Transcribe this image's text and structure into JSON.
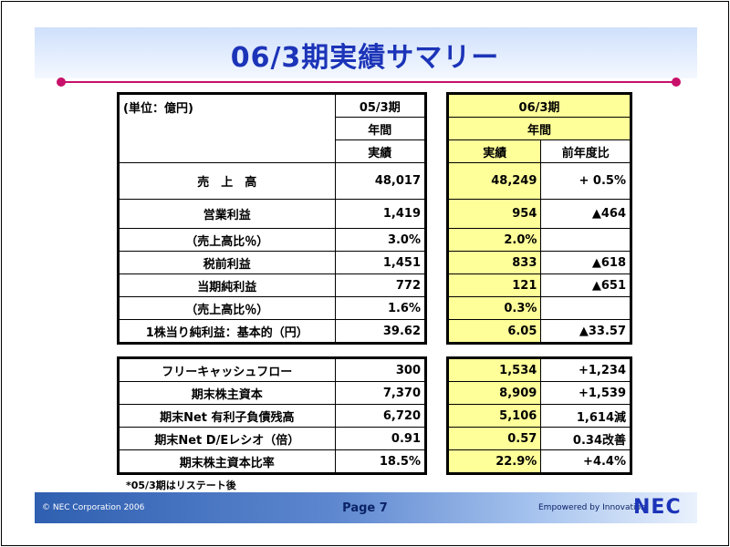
{
  "title": "06/3期実績サマリー",
  "footer": {
    "copyright": "© NEC Corporation 2006",
    "page": "Page 7",
    "powered": "Empowered by Innovation",
    "logo": "NEC"
  },
  "note": "*05/3期はリステート後",
  "table_main": {
    "unit": "(単位：億円)",
    "header_prev": [
      "05/3期",
      "年間",
      "実績"
    ],
    "header_curr": [
      "06/3期",
      "年間"
    ],
    "col_actual": "実績",
    "col_yoy": "前年度比",
    "rows": [
      {
        "label": "売　上　高",
        "prev": "48,017",
        "curr": "48,249",
        "yoy": "+ 0.5%"
      },
      {
        "label": "営業利益",
        "prev": "1,419",
        "curr": "954",
        "yoy": "▲464"
      },
      {
        "label": "（売上高比％）",
        "prev": "3.0%",
        "curr": "2.0%",
        "yoy": ""
      },
      {
        "label": "税前利益",
        "prev": "1,451",
        "curr": "833",
        "yoy": "▲618"
      },
      {
        "label": "当期純利益",
        "prev": "772",
        "curr": "121",
        "yoy": "▲651"
      },
      {
        "label": "（売上高比％）",
        "prev": "1.6%",
        "curr": "0.3%",
        "yoy": ""
      },
      {
        "label": "1株当り純利益：基本的（円）",
        "prev": "39.62",
        "curr": "6.05",
        "yoy": "▲33.57"
      }
    ]
  },
  "table_second": {
    "rows": [
      {
        "label": "フリーキャッシュフロー",
        "prev": "300",
        "curr": "1,534",
        "yoy": "+1,234"
      },
      {
        "label": "期末株主資本",
        "prev": "7,370",
        "curr": "8,909",
        "yoy": "+1,539"
      },
      {
        "label": "期末Net 有利子負債残高",
        "prev": "6,720",
        "curr": "5,106",
        "yoy": "1,614減"
      },
      {
        "label": "期末Net D/Eレシオ（倍）",
        "prev": "0.91",
        "curr": "0.57",
        "yoy": "0.34改善"
      },
      {
        "label": "期末株主資本比率",
        "prev": "18.5%",
        "curr": "22.9%",
        "yoy": "+4.4%"
      }
    ]
  }
}
